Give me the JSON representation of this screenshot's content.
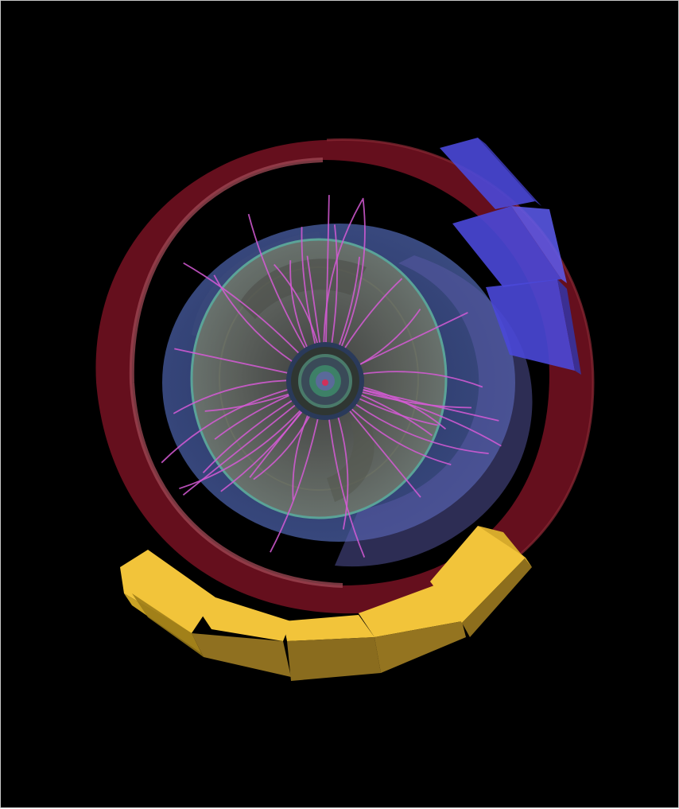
{
  "scene": {
    "background_color": "#000000",
    "frame_border_color": "#c8c8c8",
    "palette": {
      "muon_ring": "#6e1020",
      "muon_ring_edge": "#a04a55",
      "muon_chambers_top_right": "#4a48d8",
      "calorimeter_segments": "#c9a225",
      "calorimeter_top_faces": "#f2c43a",
      "outer_tracker_shell": "#3a4a8a",
      "inner_tracker_disc": "#7a7f78",
      "inner_tracker_edge": "#5da99a",
      "tracks": "#d65ad6",
      "vertex_core": "#3e8a6a",
      "interaction_point": "#d0305a"
    },
    "components": {
      "muon_ring": {
        "label": "muon-ring"
      },
      "muon_chambers": {
        "label": "muon-chambers",
        "count": 3
      },
      "calorimeter_segments": {
        "label": "calorimeter-segments",
        "count": 5
      },
      "tracker_shell": {
        "label": "outer-tracker-shell"
      },
      "tracker_disc": {
        "label": "inner-tracker-disc"
      },
      "vertex": {
        "label": "vertex-detector"
      },
      "tracks": {
        "label": "particle-tracks",
        "count": 40
      }
    }
  }
}
